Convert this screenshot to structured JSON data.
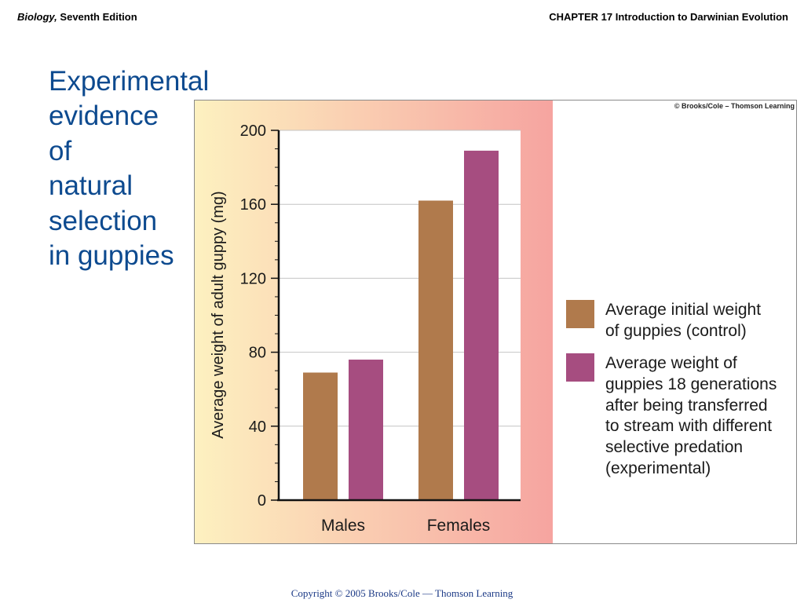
{
  "header": {
    "book": "Biology,",
    "edition": "Seventh Edition",
    "chapter": "CHAPTER 17 Introduction to Darwinian Evolution"
  },
  "slide_title": "Experimental\nevidence\nof\nnatural\nselection\nin guppies",
  "figure_credit": "© Brooks/Cole – Thomson Learning",
  "footer": "Copyright © 2005 Brooks/Cole — Thomson Learning",
  "colors": {
    "control": "#b07a4c",
    "experimental": "#a64d80",
    "title": "#0d4a8f",
    "panel_left": "#fdf1c0",
    "panel_right": "#f6a4a0"
  },
  "chart_data": {
    "type": "bar",
    "categories": [
      "Males",
      "Females"
    ],
    "series": [
      {
        "name": "Average initial weight of guppies (control)",
        "values": [
          69,
          162
        ]
      },
      {
        "name": "Average weight of guppies 18 generations after being transferred to stream with different selective predation (experimental)",
        "values": [
          76,
          189
        ]
      }
    ],
    "ylabel": "Average weight of adult guppy (mg)",
    "ylim": [
      0,
      200
    ],
    "yticks": [
      0,
      40,
      80,
      120,
      160,
      200
    ],
    "grid": true,
    "legend_position": "right"
  },
  "legend": [
    {
      "text": "Average initial weight\nof guppies (control)"
    },
    {
      "text": "Average weight of\nguppies 18 generations\nafter being transferred\nto stream with different\nselective predation\n(experimental)"
    }
  ]
}
